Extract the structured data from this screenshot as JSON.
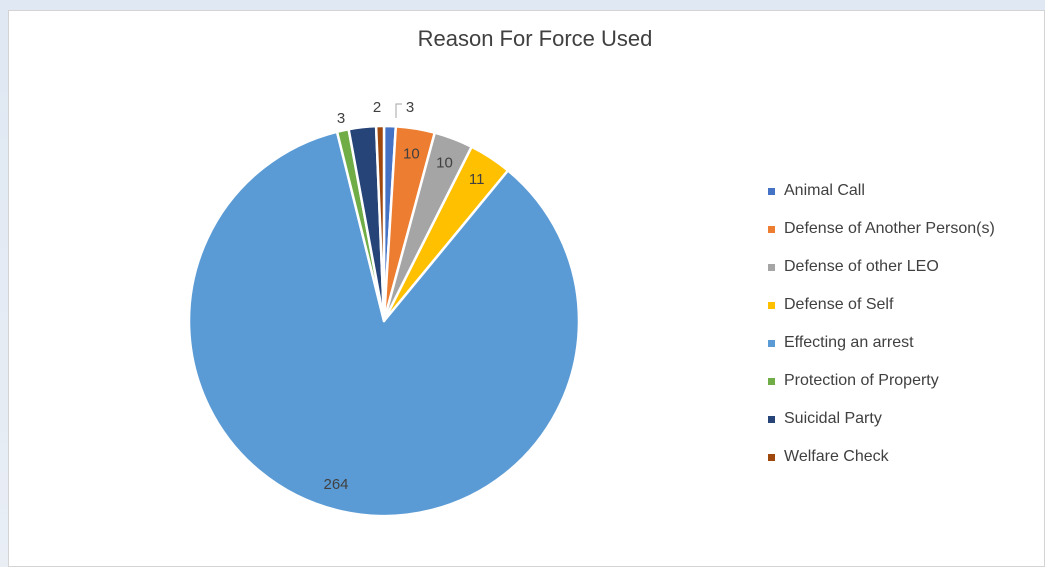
{
  "chart_data": {
    "type": "pie",
    "title": "Reason For Force Used",
    "legend_position": "right",
    "slices": [
      {
        "label": "Animal Call",
        "value": 3,
        "color": "#4472c4"
      },
      {
        "label": "Defense of Another Person(s)",
        "value": 10,
        "color": "#ed7d31"
      },
      {
        "label": "Defense of other LEO",
        "value": 10,
        "color": "#a5a5a5"
      },
      {
        "label": "Defense of Self",
        "value": 11,
        "color": "#ffc000"
      },
      {
        "label": "Effecting an arrest",
        "value": 264,
        "color": "#5b9bd5"
      },
      {
        "label": "Protection of Property",
        "value": 3,
        "color": "#70ad47"
      },
      {
        "label": "Suicidal Party",
        "value": 7,
        "color": "#264478"
      },
      {
        "label": "Welfare Check",
        "value": 2,
        "color": "#9e480e"
      }
    ],
    "data_labels": {
      "Animal Call": "3",
      "Defense of Another Person(s)": "10",
      "Defense of other LEO": "10",
      "Defense of Self": "11",
      "Effecting an arrest": "264",
      "Protection of Property": "3",
      "Suicidal Party": "",
      "Welfare Check": "2"
    }
  }
}
